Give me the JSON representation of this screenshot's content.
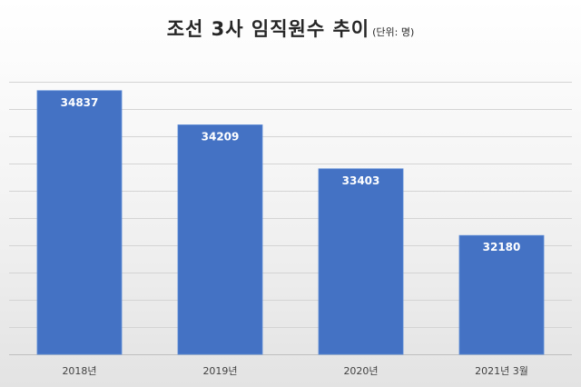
{
  "chart_data": {
    "type": "bar",
    "title": "조선 3사 임직원수 추이",
    "unit_note": "(단위: 명)",
    "categories": [
      "2018년",
      "2019년",
      "2020년",
      "2021년 3월"
    ],
    "series": [
      {
        "values": [
          34837,
          34209,
          33403,
          32180
        ]
      }
    ],
    "ylim": [
      30000,
      35500
    ],
    "y_gridline_step": 500,
    "grid": true,
    "bar_color": "#4472C4",
    "data_label_color": "#FFFFFF"
  }
}
